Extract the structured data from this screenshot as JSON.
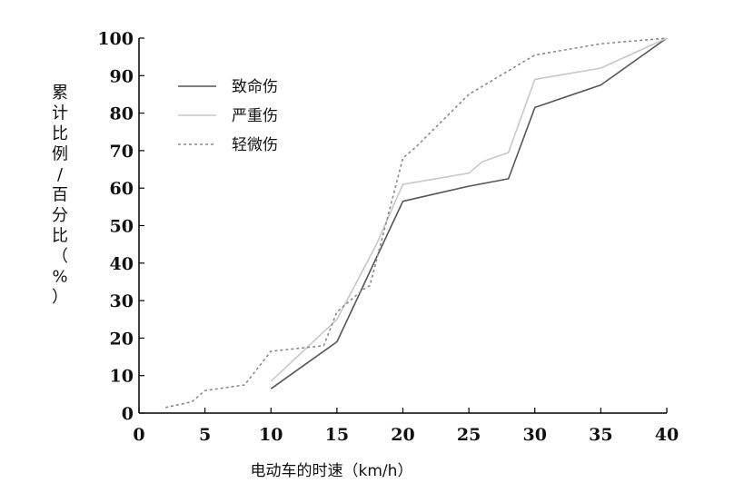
{
  "chart_data": {
    "type": "line",
    "xlabel": "电动车的时速（km/h）",
    "ylabel": "累计比例/百分比（%）",
    "xlim": [
      0,
      40
    ],
    "ylim": [
      0,
      100
    ],
    "xticks": [
      0,
      5,
      10,
      15,
      20,
      25,
      30,
      35,
      40
    ],
    "yticks": [
      0,
      10,
      20,
      30,
      40,
      50,
      60,
      70,
      80,
      90,
      100
    ],
    "grid": false,
    "legend_position": "top-left",
    "series": [
      {
        "name": "致命伤",
        "color": "#555555",
        "style": "solid",
        "points": [
          [
            10,
            6.5
          ],
          [
            15,
            19
          ],
          [
            20,
            56.5
          ],
          [
            25,
            60.5
          ],
          [
            28,
            62.5
          ],
          [
            30,
            81.5
          ],
          [
            35,
            87.5
          ],
          [
            40,
            100
          ]
        ]
      },
      {
        "name": "严重伤",
        "color": "#c8c8c8",
        "style": "solid",
        "points": [
          [
            10,
            8.5
          ],
          [
            15,
            25
          ],
          [
            18,
            45
          ],
          [
            20,
            61
          ],
          [
            25,
            64
          ],
          [
            26,
            67
          ],
          [
            28,
            69.5
          ],
          [
            30,
            89
          ],
          [
            35,
            92
          ],
          [
            40,
            100
          ]
        ]
      },
      {
        "name": "轻微伤",
        "color": "#8a8a8a",
        "style": "dotted",
        "points": [
          [
            2,
            1.5
          ],
          [
            4,
            3
          ],
          [
            5,
            6
          ],
          [
            8,
            7.5
          ],
          [
            10,
            16.5
          ],
          [
            14,
            18
          ],
          [
            15,
            27
          ],
          [
            17,
            33
          ],
          [
            17.5,
            34
          ],
          [
            20,
            68
          ],
          [
            21,
            71
          ],
          [
            25,
            85
          ],
          [
            30,
            95.5
          ],
          [
            35,
            98.5
          ],
          [
            40,
            100
          ]
        ]
      }
    ]
  }
}
